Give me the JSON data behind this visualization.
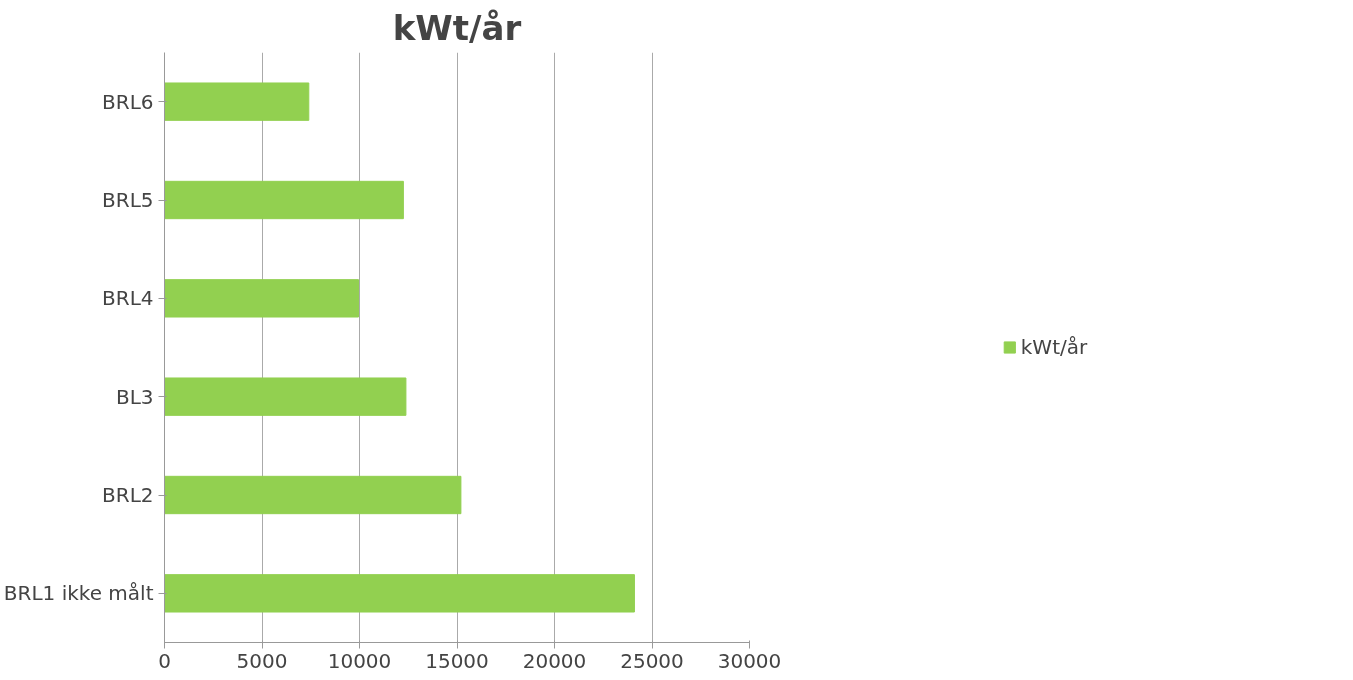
{
  "chart_data": {
    "type": "bar",
    "orientation": "horizontal",
    "title": "kWt/år",
    "categories": [
      "BRL6",
      "BRL5",
      "BRL4",
      "BL3",
      "BRL2",
      "BRL1 ikke målt"
    ],
    "series": [
      {
        "name": "kWt/år",
        "color": "#92d050",
        "values": [
          7400,
          12250,
          9950,
          12380,
          15200,
          24100
        ]
      }
    ],
    "xlim": [
      0,
      30000
    ],
    "xticks": [
      0,
      5000,
      10000,
      15000,
      20000,
      25000,
      30000
    ],
    "grid": "x",
    "legend": "right"
  }
}
